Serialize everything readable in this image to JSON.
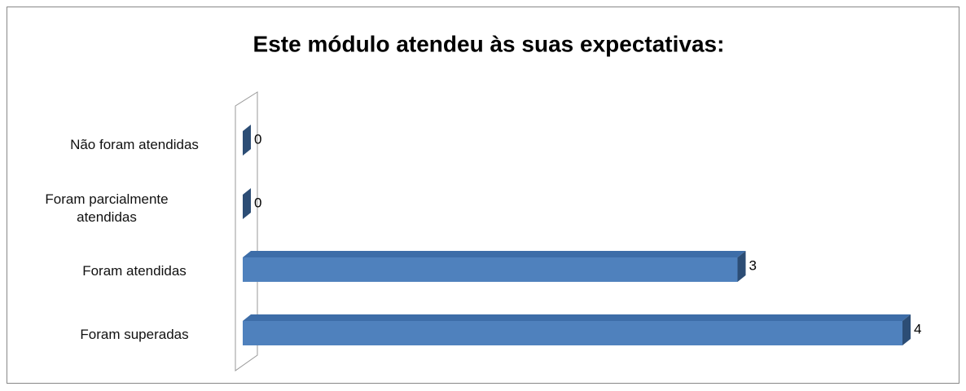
{
  "chart_data": {
    "type": "bar",
    "orientation": "horizontal",
    "title": "Este módulo atendeu às suas expectativas:",
    "categories": [
      "Não foram atendidas",
      "Foram parcialmente atendidas",
      "Foram atendidas",
      "Foram superadas"
    ],
    "values": [
      0,
      0,
      3,
      4
    ],
    "color": "#4f81bd"
  }
}
